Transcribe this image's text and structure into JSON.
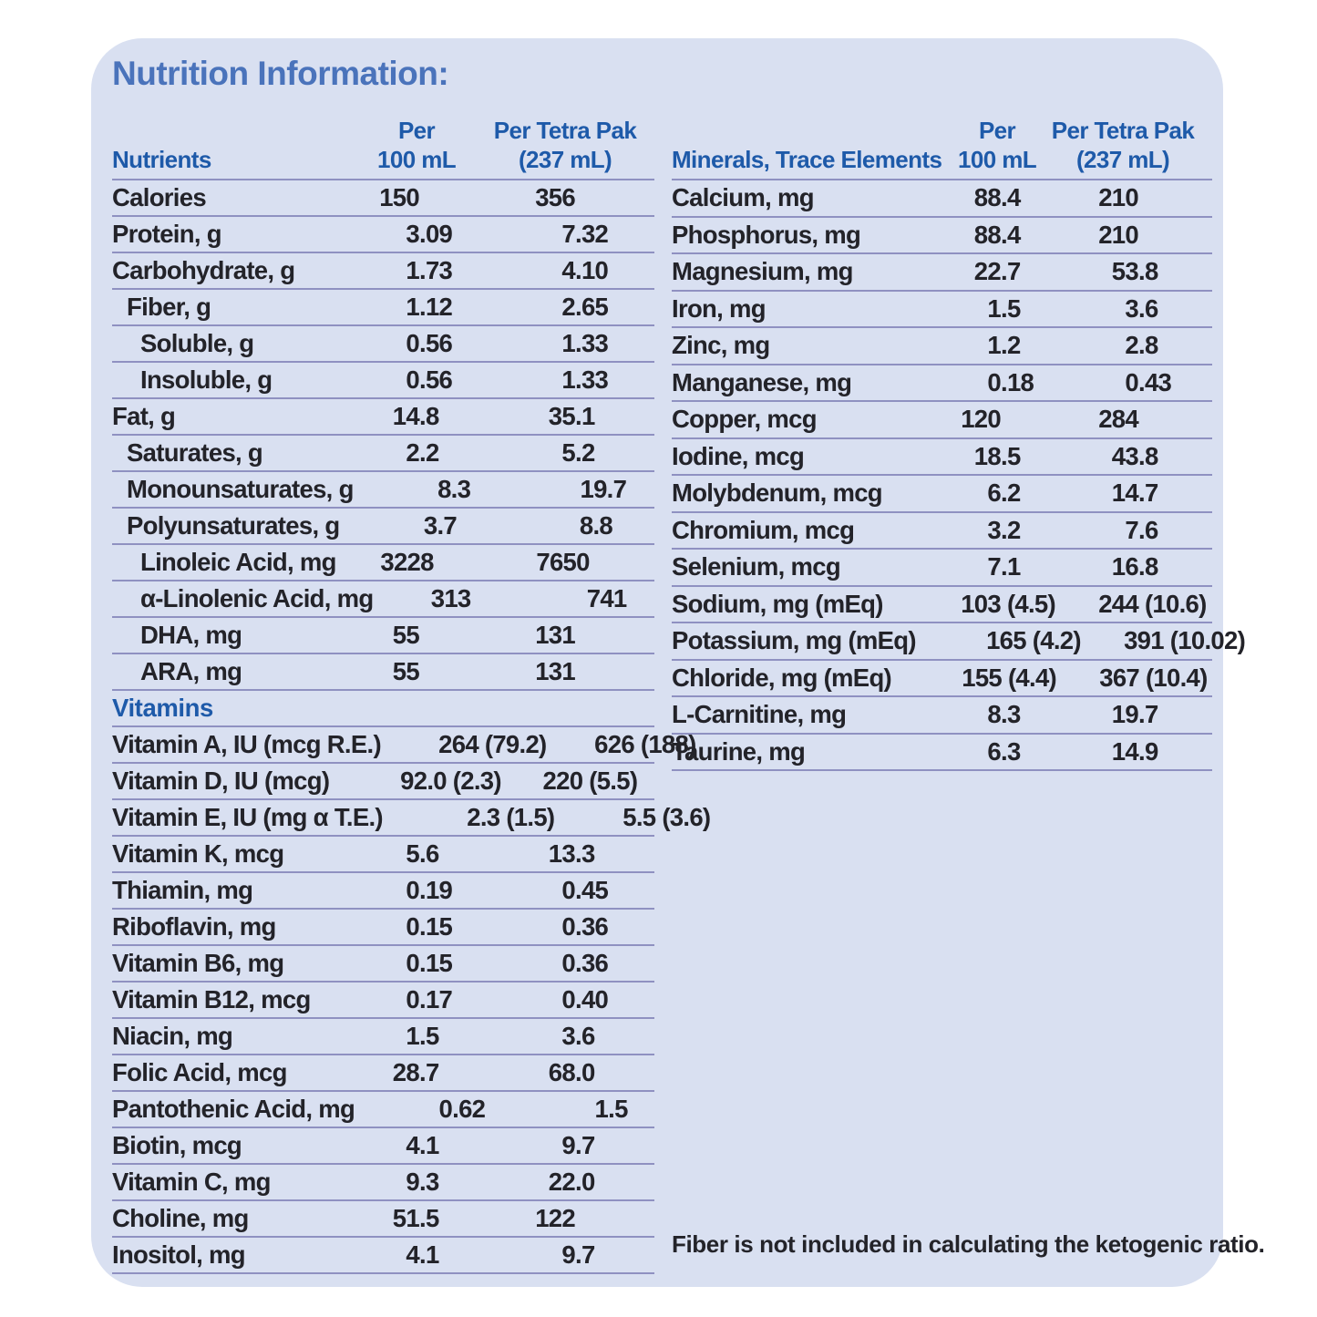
{
  "title": "Nutrition Information:",
  "footnote": "Fiber is not included in calculating the ketogenic ratio.",
  "colors": {
    "card_background": "#d9e0f1",
    "heading_blue": "#1e5aa9",
    "title_blue": "#4a73bb",
    "body_text": "#232329",
    "divider": "#8f91c1"
  },
  "left_table": {
    "header": {
      "label": "Nutrients",
      "col1_line1": "Per",
      "col1_line2": "100 mL",
      "col2_line1": "Per Tetra Pak",
      "col2_line2": "(237 mL)"
    },
    "rows": [
      {
        "label": "Calories",
        "indent": 0,
        "per_100ml": "150",
        "per_tetra_pak": "356"
      },
      {
        "label": "Protein, g",
        "indent": 0,
        "per_100ml": "3.09",
        "per_tetra_pak": "7.32"
      },
      {
        "label": "Carbohydrate, g",
        "indent": 0,
        "per_100ml": "1.73",
        "per_tetra_pak": "4.10"
      },
      {
        "label": "Fiber, g",
        "indent": 1,
        "per_100ml": "1.12",
        "per_tetra_pak": "2.65"
      },
      {
        "label": "Soluble, g",
        "indent": 2,
        "per_100ml": "0.56",
        "per_tetra_pak": "1.33"
      },
      {
        "label": "Insoluble, g",
        "indent": 2,
        "per_100ml": "0.56",
        "per_tetra_pak": "1.33"
      },
      {
        "label": "Fat, g",
        "indent": 0,
        "per_100ml": "14.8",
        "per_tetra_pak": "35.1"
      },
      {
        "label": "Saturates, g",
        "indent": 1,
        "per_100ml": "2.2",
        "per_tetra_pak": "5.2"
      },
      {
        "label": "Monounsaturates, g",
        "indent": 1,
        "per_100ml": "8.3",
        "per_tetra_pak": "19.7"
      },
      {
        "label": "Polyunsaturates, g",
        "indent": 1,
        "per_100ml": "3.7",
        "per_tetra_pak": "8.8"
      },
      {
        "label": "Linoleic Acid, mg",
        "indent": 2,
        "per_100ml": "3228",
        "per_tetra_pak": "7650"
      },
      {
        "label": "α-Linolenic Acid, mg",
        "indent": 2,
        "per_100ml": "313",
        "per_tetra_pak": "741"
      },
      {
        "label": "DHA, mg",
        "indent": 2,
        "per_100ml": "55",
        "per_tetra_pak": "131"
      },
      {
        "label": "ARA, mg",
        "indent": 2,
        "per_100ml": "55",
        "per_tetra_pak": "131"
      },
      {
        "label": "Vitamins",
        "section": true
      },
      {
        "label": "Vitamin A, IU (mcg R.E.)",
        "indent": 0,
        "per_100ml": "264 (79.2)",
        "per_tetra_pak": "626 (188)"
      },
      {
        "label": "Vitamin D, IU (mcg)",
        "indent": 0,
        "per_100ml": "92.0 (2.3)",
        "per_tetra_pak": "220 (5.5)"
      },
      {
        "label": "Vitamin E, IU (mg α T.E.)",
        "indent": 0,
        "per_100ml": "2.3 (1.5)",
        "per_tetra_pak": "5.5 (3.6)"
      },
      {
        "label": "Vitamin K, mcg",
        "indent": 0,
        "per_100ml": "5.6",
        "per_tetra_pak": "13.3"
      },
      {
        "label": "Thiamin, mg",
        "indent": 0,
        "per_100ml": "0.19",
        "per_tetra_pak": "0.45"
      },
      {
        "label": "Riboflavin, mg",
        "indent": 0,
        "per_100ml": "0.15",
        "per_tetra_pak": "0.36"
      },
      {
        "label": "Vitamin B6, mg",
        "indent": 0,
        "per_100ml": "0.15",
        "per_tetra_pak": "0.36"
      },
      {
        "label": "Vitamin B12, mcg",
        "indent": 0,
        "per_100ml": "0.17",
        "per_tetra_pak": "0.40"
      },
      {
        "label": "Niacin, mg",
        "indent": 0,
        "per_100ml": "1.5",
        "per_tetra_pak": "3.6"
      },
      {
        "label": "Folic Acid, mcg",
        "indent": 0,
        "per_100ml": "28.7",
        "per_tetra_pak": "68.0"
      },
      {
        "label": "Pantothenic Acid, mg",
        "indent": 0,
        "per_100ml": "0.62",
        "per_tetra_pak": "1.5"
      },
      {
        "label": "Biotin, mcg",
        "indent": 0,
        "per_100ml": "4.1",
        "per_tetra_pak": "9.7"
      },
      {
        "label": "Vitamin C, mg",
        "indent": 0,
        "per_100ml": "9.3",
        "per_tetra_pak": "22.0"
      },
      {
        "label": "Choline, mg",
        "indent": 0,
        "per_100ml": "51.5",
        "per_tetra_pak": "122"
      },
      {
        "label": "Inositol, mg",
        "indent": 0,
        "per_100ml": "4.1",
        "per_tetra_pak": "9.7"
      }
    ]
  },
  "right_table": {
    "header": {
      "label": "Minerals, Trace Elements",
      "col1_line1": "Per",
      "col1_line2": "100 mL",
      "col2_line1": "Per Tetra Pak",
      "col2_line2": "(237 mL)"
    },
    "rows": [
      {
        "label": "Calcium, mg",
        "indent": 0,
        "per_100ml": "88.4",
        "per_tetra_pak": "210"
      },
      {
        "label": "Phosphorus, mg",
        "indent": 0,
        "per_100ml": "88.4",
        "per_tetra_pak": "210"
      },
      {
        "label": "Magnesium, mg",
        "indent": 0,
        "per_100ml": "22.7",
        "per_tetra_pak": "53.8"
      },
      {
        "label": "Iron, mg",
        "indent": 0,
        "per_100ml": "1.5",
        "per_tetra_pak": "3.6"
      },
      {
        "label": "Zinc, mg",
        "indent": 0,
        "per_100ml": "1.2",
        "per_tetra_pak": "2.8"
      },
      {
        "label": "Manganese, mg",
        "indent": 0,
        "per_100ml": "0.18",
        "per_tetra_pak": "0.43"
      },
      {
        "label": "Copper, mcg",
        "indent": 0,
        "per_100ml": "120",
        "per_tetra_pak": "284"
      },
      {
        "label": "Iodine, mcg",
        "indent": 0,
        "per_100ml": "18.5",
        "per_tetra_pak": "43.8"
      },
      {
        "label": "Molybdenum, mcg",
        "indent": 0,
        "per_100ml": "6.2",
        "per_tetra_pak": "14.7"
      },
      {
        "label": "Chromium, mcg",
        "indent": 0,
        "per_100ml": "3.2",
        "per_tetra_pak": "7.6"
      },
      {
        "label": "Selenium, mcg",
        "indent": 0,
        "per_100ml": "7.1",
        "per_tetra_pak": "16.8"
      },
      {
        "label": "Sodium, mg (mEq)",
        "indent": 0,
        "per_100ml": "103 (4.5)",
        "per_tetra_pak": "244 (10.6)"
      },
      {
        "label": "Potassium, mg (mEq)",
        "indent": 0,
        "per_100ml": "165 (4.2)",
        "per_tetra_pak": "391 (10.02)"
      },
      {
        "label": "Chloride, mg (mEq)",
        "indent": 0,
        "per_100ml": "155 (4.4)",
        "per_tetra_pak": "367 (10.4)"
      },
      {
        "label": "L-Carnitine, mg",
        "indent": 0,
        "per_100ml": "8.3",
        "per_tetra_pak": "19.7"
      },
      {
        "label": "Taurine, mg",
        "indent": 0,
        "per_100ml": "6.3",
        "per_tetra_pak": "14.9"
      }
    ]
  }
}
